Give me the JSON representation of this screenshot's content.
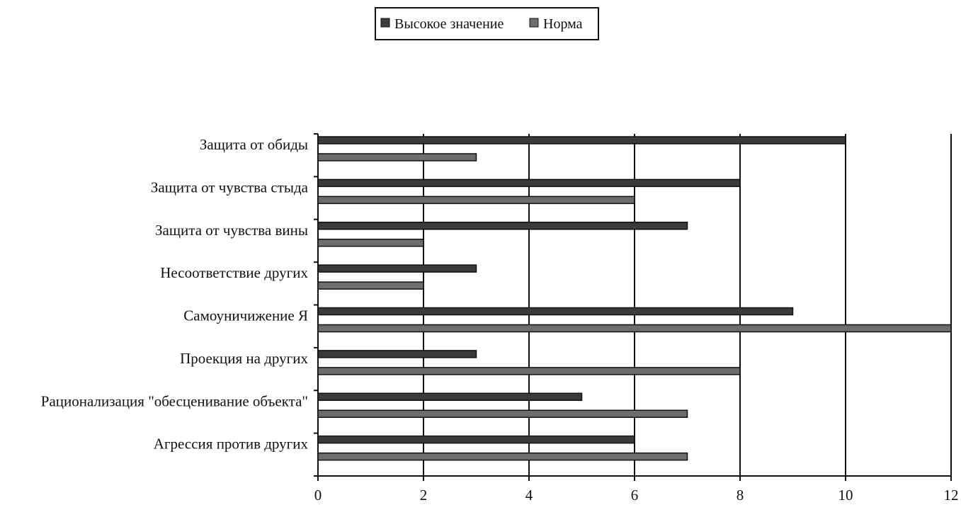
{
  "chart_data": {
    "type": "bar",
    "orientation": "horizontal",
    "legend": {
      "position": "top-center",
      "items": [
        {
          "label": "Высокое значение",
          "color": "#3a3a3a"
        },
        {
          "label": "Норма",
          "color": "#6d6d6d"
        }
      ]
    },
    "categories": [
      "Защита от обиды",
      "Защита от чувства стыда",
      "Защита от чувства вины",
      "Несоответствие других",
      "Самоуничижение Я",
      "Проекция на других",
      "Рационализация \"обесценивание объекта\"",
      "Агрессия против других"
    ],
    "series": [
      {
        "name": "Высокое значение",
        "color": "#3a3a3a",
        "values": [
          10,
          8,
          7,
          3,
          9,
          3,
          5,
          6
        ]
      },
      {
        "name": "Норма",
        "color": "#6d6d6d",
        "values": [
          3,
          6,
          2,
          2,
          12,
          8,
          7,
          7
        ]
      }
    ],
    "xaxis": {
      "min": 0,
      "max": 12,
      "ticks": [
        0,
        2,
        4,
        6,
        8,
        10,
        12
      ],
      "tick_labels": [
        "0",
        "2",
        "4",
        "6",
        "8",
        "10",
        "12"
      ]
    },
    "grid": true
  }
}
